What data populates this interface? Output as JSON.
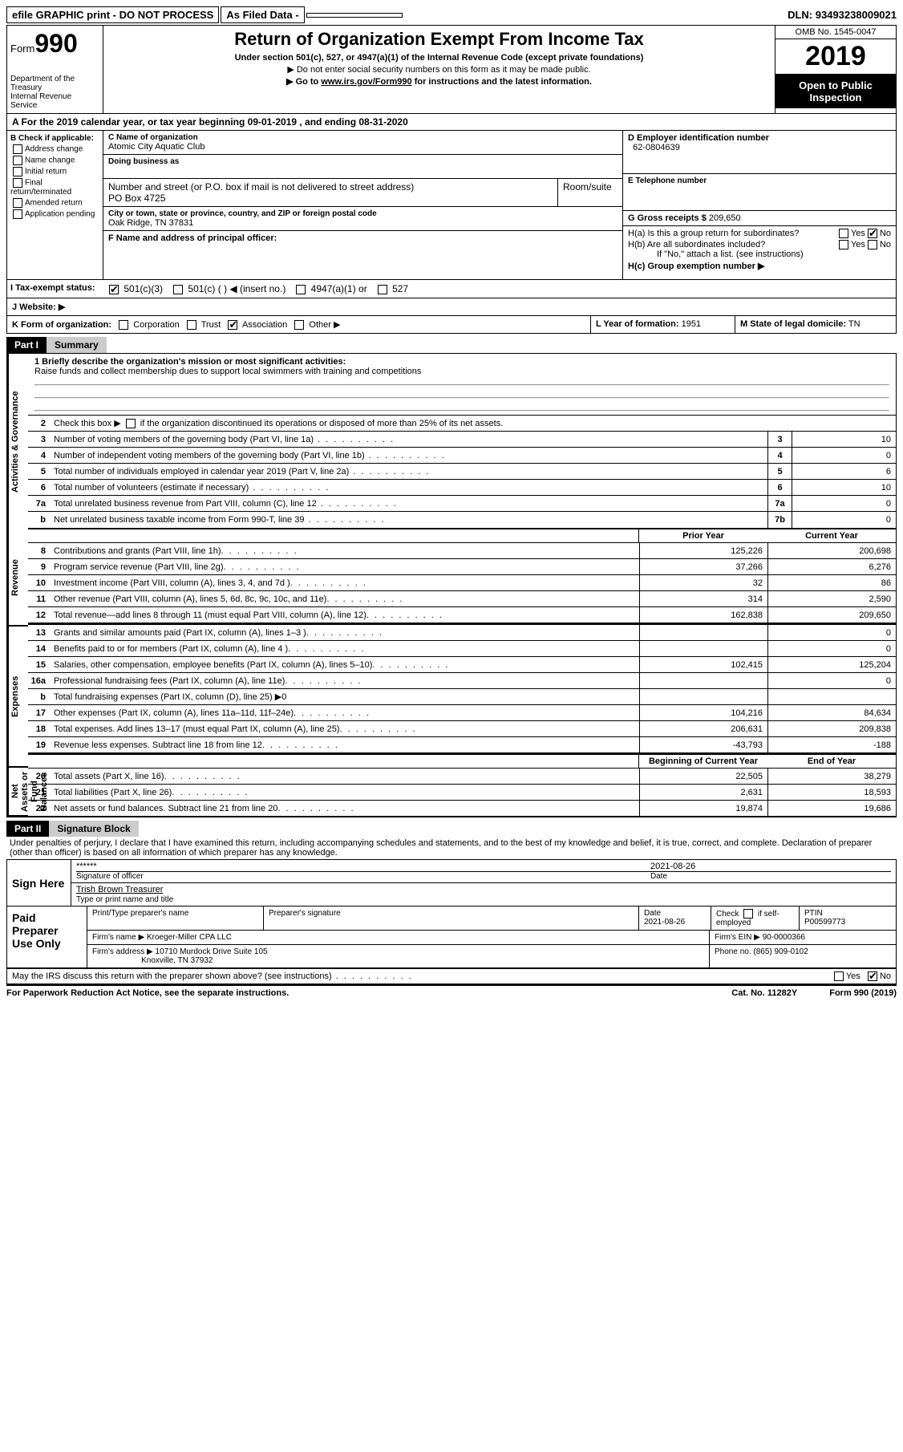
{
  "top": {
    "efile": "efile GRAPHIC print - DO NOT PROCESS",
    "asfiled": "As Filed Data -",
    "dln_label": "DLN:",
    "dln": "93493238009021"
  },
  "header": {
    "form_label": "Form",
    "form_no": "990",
    "dept": "Department of the Treasury\nInternal Revenue Service",
    "title": "Return of Organization Exempt From Income Tax",
    "sub": "Under section 501(c), 527, or 4947(a)(1) of the Internal Revenue Code (except private foundations)",
    "sub2a": "▶ Do not enter social security numbers on this form as it may be made public.",
    "sub2b": "▶ Go to www.irs.gov/Form990 for instructions and the latest information.",
    "omb": "OMB No. 1545-0047",
    "year": "2019",
    "open": "Open to Public Inspection"
  },
  "A": {
    "text": "A  For the 2019 calendar year, or tax year beginning 09-01-2019   , and ending 08-31-2020"
  },
  "B": {
    "label": "B Check if applicable:",
    "items": [
      "Address change",
      "Name change",
      "Initial return",
      "Final return/terminated",
      "Amended return",
      "Application pending"
    ]
  },
  "C": {
    "name_lbl": "C Name of organization",
    "name": "Atomic City Aquatic Club",
    "dba_lbl": "Doing business as",
    "addr_lbl": "Number and street (or P.O. box if mail is not delivered to street address)",
    "room_lbl": "Room/suite",
    "addr": "PO Box 4725",
    "city_lbl": "City or town, state or province, country, and ZIP or foreign postal code",
    "city": "Oak Ridge, TN  37831"
  },
  "D": {
    "lbl": "D Employer identification number",
    "val": "62-0804639"
  },
  "E": {
    "lbl": "E Telephone number",
    "val": ""
  },
  "G": {
    "lbl": "G Gross receipts $",
    "val": "209,650"
  },
  "F": {
    "lbl": "F  Name and address of principal officer:"
  },
  "H": {
    "a": "H(a)  Is this a group return for subordinates?",
    "a_yes": "Yes",
    "a_no": "No",
    "b": "H(b)  Are all subordinates included?",
    "b_yes": "Yes",
    "b_no": "No",
    "b_note": "If \"No,\" attach a list. (see instructions)",
    "c": "H(c)  Group exemption number ▶"
  },
  "I": {
    "lbl": "I  Tax-exempt status:",
    "o1": "501(c)(3)",
    "o2": "501(c) (   ) ◀ (insert no.)",
    "o3": "4947(a)(1) or",
    "o4": "527"
  },
  "J": {
    "lbl": "J  Website: ▶"
  },
  "K": {
    "lbl": "K Form of organization:",
    "o1": "Corporation",
    "o2": "Trust",
    "o3": "Association",
    "o4": "Other ▶"
  },
  "L": {
    "lbl": "L Year of formation:",
    "val": "1951"
  },
  "M": {
    "lbl": "M State of legal domicile:",
    "val": "TN"
  },
  "part1": {
    "tag": "Part I",
    "title": "Summary"
  },
  "summary": {
    "mission_lbl": "1  Briefly describe the organization's mission or most significant activities:",
    "mission": "Raise funds and collect membership dues to support local swimmers with training and competitions",
    "line2": "Check this box ▶        if the organization discontinued its operations or disposed of more than 25% of its net assets.",
    "lines_gov": [
      {
        "n": "3",
        "d": "Number of voting members of the governing body (Part VI, line 1a)",
        "box": "3",
        "v": "10"
      },
      {
        "n": "4",
        "d": "Number of independent voting members of the governing body (Part VI, line 1b)",
        "box": "4",
        "v": "0"
      },
      {
        "n": "5",
        "d": "Total number of individuals employed in calendar year 2019 (Part V, line 2a)",
        "box": "5",
        "v": "6"
      },
      {
        "n": "6",
        "d": "Total number of volunteers (estimate if necessary)",
        "box": "6",
        "v": "10"
      },
      {
        "n": "7a",
        "d": "Total unrelated business revenue from Part VIII, column (C), line 12",
        "box": "7a",
        "v": "0"
      },
      {
        "n": "b",
        "d": "Net unrelated business taxable income from Form 990-T, line 39",
        "box": "7b",
        "v": "0"
      }
    ],
    "prior_lbl": "Prior Year",
    "current_lbl": "Current Year",
    "revenue": [
      {
        "n": "8",
        "d": "Contributions and grants (Part VIII, line 1h)",
        "p": "125,226",
        "c": "200,698"
      },
      {
        "n": "9",
        "d": "Program service revenue (Part VIII, line 2g)",
        "p": "37,266",
        "c": "6,276"
      },
      {
        "n": "10",
        "d": "Investment income (Part VIII, column (A), lines 3, 4, and 7d )",
        "p": "32",
        "c": "86"
      },
      {
        "n": "11",
        "d": "Other revenue (Part VIII, column (A), lines 5, 6d, 8c, 9c, 10c, and 11e)",
        "p": "314",
        "c": "2,590"
      },
      {
        "n": "12",
        "d": "Total revenue—add lines 8 through 11 (must equal Part VIII, column (A), line 12)",
        "p": "162,838",
        "c": "209,650"
      }
    ],
    "expenses": [
      {
        "n": "13",
        "d": "Grants and similar amounts paid (Part IX, column (A), lines 1–3 )",
        "p": "",
        "c": "0"
      },
      {
        "n": "14",
        "d": "Benefits paid to or for members (Part IX, column (A), line 4 )",
        "p": "",
        "c": "0"
      },
      {
        "n": "15",
        "d": "Salaries, other compensation, employee benefits (Part IX, column (A), lines 5–10)",
        "p": "102,415",
        "c": "125,204"
      },
      {
        "n": "16a",
        "d": "Professional fundraising fees (Part IX, column (A), line 11e)",
        "p": "",
        "c": "0"
      },
      {
        "n": "b",
        "d": "Total fundraising expenses (Part IX, column (D), line 25) ▶0",
        "p": "",
        "c": ""
      },
      {
        "n": "17",
        "d": "Other expenses (Part IX, column (A), lines 11a–11d, 11f–24e)",
        "p": "104,216",
        "c": "84,634"
      },
      {
        "n": "18",
        "d": "Total expenses. Add lines 13–17 (must equal Part IX, column (A), line 25)",
        "p": "206,631",
        "c": "209,838"
      },
      {
        "n": "19",
        "d": "Revenue less expenses. Subtract line 18 from line 12",
        "p": "-43,793",
        "c": "-188"
      }
    ],
    "boy_lbl": "Beginning of Current Year",
    "eoy_lbl": "End of Year",
    "netassets": [
      {
        "n": "20",
        "d": "Total assets (Part X, line 16)",
        "p": "22,505",
        "c": "38,279"
      },
      {
        "n": "21",
        "d": "Total liabilities (Part X, line 26)",
        "p": "2,631",
        "c": "18,593"
      },
      {
        "n": "22",
        "d": "Net assets or fund balances. Subtract line 21 from line 20",
        "p": "19,874",
        "c": "19,686"
      }
    ],
    "vtabs": {
      "gov": "Activities & Governance",
      "rev": "Revenue",
      "exp": "Expenses",
      "net": "Net Assets or Fund Balances"
    }
  },
  "part2": {
    "tag": "Part II",
    "title": "Signature Block"
  },
  "sig": {
    "perjury": "Under penalties of perjury, I declare that I have examined this return, including accompanying schedules and statements, and to the best of my knowledge and belief, it is true, correct, and complete. Declaration of preparer (other than officer) is based on all information of which preparer has any knowledge.",
    "sign_here": "Sign Here",
    "stars": "******",
    "sig_officer": "Signature of officer",
    "date1": "2021-08-26",
    "date_lbl": "Date",
    "officer": "Trish Brown Treasurer",
    "type_name": "Type or print name and title",
    "paid": "Paid Preparer Use Only",
    "pt_name_lbl": "Print/Type preparer's name",
    "pt_sig_lbl": "Preparer's signature",
    "pt_date_lbl": "Date",
    "pt_date": "2021-08-26",
    "check_lbl": "Check        if self-employed",
    "ptin_lbl": "PTIN",
    "ptin": "P00599773",
    "firm_name_lbl": "Firm's name    ▶",
    "firm_name": "Kroeger-Miller CPA LLC",
    "firm_ein_lbl": "Firm's EIN ▶",
    "firm_ein": "90-0000366",
    "firm_addr_lbl": "Firm's address ▶",
    "firm_addr1": "10710 Murdock Drive Suite 105",
    "firm_addr2": "Knoxville, TN  37932",
    "phone_lbl": "Phone no.",
    "phone": "(865) 909-0102",
    "discuss": "May the IRS discuss this return with the preparer shown above? (see instructions)",
    "yes": "Yes",
    "no": "No"
  },
  "footer": {
    "pra": "For Paperwork Reduction Act Notice, see the separate instructions.",
    "cat": "Cat. No. 11282Y",
    "form": "Form 990 (2019)"
  },
  "colors": {
    "black": "#000000",
    "white": "#ffffff",
    "grey": "#cccccc"
  }
}
